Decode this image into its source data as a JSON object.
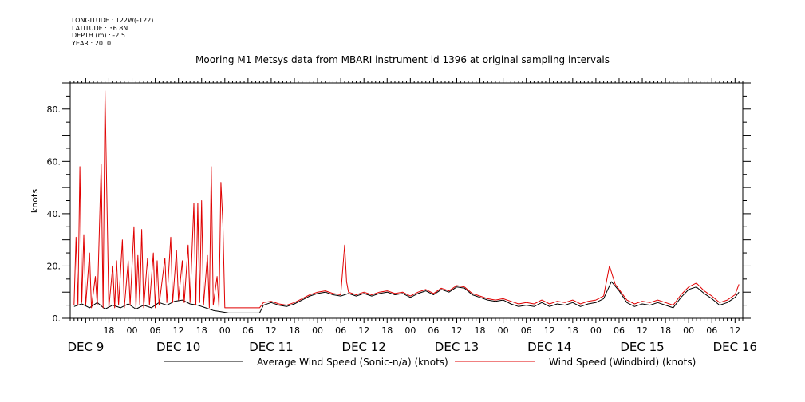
{
  "header": {
    "longitude": "LONGITUDE : 122W(-122)",
    "latitude": "LATITUDE : 36.8N",
    "depth": "DEPTH (m) : -2.5",
    "year": "YEAR : 2010"
  },
  "chart_data": {
    "type": "line",
    "title": "Mooring M1 Metsys data from MBARI instrument id 1396 at original sampling intervals",
    "ylabel": "knots",
    "xlabel": "",
    "xlim": [
      "2010-12-09T08:00",
      "2010-12-16T14:00"
    ],
    "ylim": [
      0,
      90
    ],
    "y_ticks": [
      0,
      20,
      40,
      60,
      80
    ],
    "y_tick_labels": [
      "0.",
      "20.",
      "40.",
      "60.",
      "80."
    ],
    "x_hour_labels": [
      {
        "t": "2010-12-09T18:00",
        "label": "18"
      },
      {
        "t": "2010-12-10T00:00",
        "label": "00"
      },
      {
        "t": "2010-12-10T06:00",
        "label": "06"
      },
      {
        "t": "2010-12-10T12:00",
        "label": "12"
      },
      {
        "t": "2010-12-10T18:00",
        "label": "18"
      },
      {
        "t": "2010-12-11T00:00",
        "label": "00"
      },
      {
        "t": "2010-12-11T06:00",
        "label": "06"
      },
      {
        "t": "2010-12-11T12:00",
        "label": "12"
      },
      {
        "t": "2010-12-11T18:00",
        "label": "18"
      },
      {
        "t": "2010-12-12T00:00",
        "label": "00"
      },
      {
        "t": "2010-12-12T06:00",
        "label": "06"
      },
      {
        "t": "2010-12-12T12:00",
        "label": "12"
      },
      {
        "t": "2010-12-12T18:00",
        "label": "18"
      },
      {
        "t": "2010-12-13T00:00",
        "label": "00"
      },
      {
        "t": "2010-12-13T06:00",
        "label": "06"
      },
      {
        "t": "2010-12-13T12:00",
        "label": "12"
      },
      {
        "t": "2010-12-13T18:00",
        "label": "18"
      },
      {
        "t": "2010-12-14T00:00",
        "label": "00"
      },
      {
        "t": "2010-12-14T06:00",
        "label": "06"
      },
      {
        "t": "2010-12-14T12:00",
        "label": "12"
      },
      {
        "t": "2010-12-14T18:00",
        "label": "18"
      },
      {
        "t": "2010-12-15T00:00",
        "label": "00"
      },
      {
        "t": "2010-12-15T06:00",
        "label": "06"
      },
      {
        "t": "2010-12-15T12:00",
        "label": "12"
      },
      {
        "t": "2010-12-15T18:00",
        "label": "18"
      },
      {
        "t": "2010-12-16T00:00",
        "label": "00"
      },
      {
        "t": "2010-12-16T06:00",
        "label": "06"
      },
      {
        "t": "2010-12-16T12:00",
        "label": "12"
      }
    ],
    "x_day_labels": [
      {
        "t": "2010-12-09T12:00",
        "label": "DEC  9"
      },
      {
        "t": "2010-12-10T12:00",
        "label": "DEC 10"
      },
      {
        "t": "2010-12-11T12:00",
        "label": "DEC 11"
      },
      {
        "t": "2010-12-12T12:00",
        "label": "DEC 12"
      },
      {
        "t": "2010-12-13T12:00",
        "label": "DEC 13"
      },
      {
        "t": "2010-12-14T12:00",
        "label": "DEC 14"
      },
      {
        "t": "2010-12-15T12:00",
        "label": "DEC 15"
      },
      {
        "t": "2010-12-16T12:00",
        "label": "DEC 16"
      }
    ],
    "legend_position": "bottom",
    "series": [
      {
        "name": "Average Wind Speed (Sonic-n/a) (knots)",
        "color": "#000000",
        "points": [
          [
            "2010-12-09T09:00",
            4.5
          ],
          [
            "2010-12-09T11:00",
            5.5
          ],
          [
            "2010-12-09T13:00",
            4.0
          ],
          [
            "2010-12-09T15:00",
            6.0
          ],
          [
            "2010-12-09T17:00",
            3.5
          ],
          [
            "2010-12-09T19:00",
            5.0
          ],
          [
            "2010-12-09T21:00",
            4.0
          ],
          [
            "2010-12-09T23:00",
            5.5
          ],
          [
            "2010-12-10T01:00",
            3.5
          ],
          [
            "2010-12-10T03:00",
            5.0
          ],
          [
            "2010-12-10T05:00",
            4.0
          ],
          [
            "2010-12-10T07:00",
            6.0
          ],
          [
            "2010-12-10T09:00",
            5.0
          ],
          [
            "2010-12-10T11:00",
            6.5
          ],
          [
            "2010-12-10T13:00",
            7.0
          ],
          [
            "2010-12-10T15:00",
            5.5
          ],
          [
            "2010-12-10T17:00",
            5.0
          ],
          [
            "2010-12-10T19:00",
            4.0
          ],
          [
            "2010-12-10T21:00",
            3.0
          ],
          [
            "2010-12-10T23:00",
            2.5
          ],
          [
            "2010-12-11T01:00",
            2.0
          ],
          [
            "2010-12-11T09:00",
            2.0
          ],
          [
            "2010-12-11T10:00",
            5.0
          ],
          [
            "2010-12-11T12:00",
            6.0
          ],
          [
            "2010-12-11T14:00",
            5.0
          ],
          [
            "2010-12-11T16:00",
            4.5
          ],
          [
            "2010-12-11T18:00",
            5.5
          ],
          [
            "2010-12-11T20:00",
            7.0
          ],
          [
            "2010-12-11T22:00",
            8.5
          ],
          [
            "2010-12-12T00:00",
            9.5
          ],
          [
            "2010-12-12T02:00",
            10.0
          ],
          [
            "2010-12-12T04:00",
            9.0
          ],
          [
            "2010-12-12T06:00",
            8.5
          ],
          [
            "2010-12-12T08:00",
            9.5
          ],
          [
            "2010-12-12T10:00",
            8.5
          ],
          [
            "2010-12-12T12:00",
            9.5
          ],
          [
            "2010-12-12T14:00",
            8.5
          ],
          [
            "2010-12-12T16:00",
            9.5
          ],
          [
            "2010-12-12T18:00",
            10.0
          ],
          [
            "2010-12-12T20:00",
            9.0
          ],
          [
            "2010-12-12T22:00",
            9.5
          ],
          [
            "2010-12-13T00:00",
            8.0
          ],
          [
            "2010-12-13T02:00",
            9.5
          ],
          [
            "2010-12-13T04:00",
            10.5
          ],
          [
            "2010-12-13T06:00",
            9.0
          ],
          [
            "2010-12-13T08:00",
            11.0
          ],
          [
            "2010-12-13T10:00",
            10.0
          ],
          [
            "2010-12-13T12:00",
            12.0
          ],
          [
            "2010-12-13T14:00",
            11.5
          ],
          [
            "2010-12-13T16:00",
            9.0
          ],
          [
            "2010-12-13T18:00",
            8.0
          ],
          [
            "2010-12-13T20:00",
            7.0
          ],
          [
            "2010-12-13T22:00",
            6.5
          ],
          [
            "2010-12-14T00:00",
            7.0
          ],
          [
            "2010-12-14T02:00",
            5.5
          ],
          [
            "2010-12-14T04:00",
            4.5
          ],
          [
            "2010-12-14T06:00",
            5.0
          ],
          [
            "2010-12-14T08:00",
            4.5
          ],
          [
            "2010-12-14T10:00",
            6.0
          ],
          [
            "2010-12-14T12:00",
            4.5
          ],
          [
            "2010-12-14T14:00",
            5.5
          ],
          [
            "2010-12-14T16:00",
            5.0
          ],
          [
            "2010-12-14T18:00",
            6.0
          ],
          [
            "2010-12-14T20:00",
            4.5
          ],
          [
            "2010-12-14T22:00",
            5.5
          ],
          [
            "2010-12-15T00:00",
            6.0
          ],
          [
            "2010-12-15T02:00",
            7.5
          ],
          [
            "2010-12-15T04:00",
            14.0
          ],
          [
            "2010-12-15T06:00",
            10.5
          ],
          [
            "2010-12-15T08:00",
            6.0
          ],
          [
            "2010-12-15T10:00",
            4.5
          ],
          [
            "2010-12-15T12:00",
            5.5
          ],
          [
            "2010-12-15T14:00",
            5.0
          ],
          [
            "2010-12-15T16:00",
            6.0
          ],
          [
            "2010-12-15T18:00",
            5.0
          ],
          [
            "2010-12-15T20:00",
            4.0
          ],
          [
            "2010-12-15T22:00",
            8.0
          ],
          [
            "2010-12-16T00:00",
            11.0
          ],
          [
            "2010-12-16T02:00",
            12.0
          ],
          [
            "2010-12-16T04:00",
            9.5
          ],
          [
            "2010-12-16T06:00",
            7.5
          ],
          [
            "2010-12-16T08:00",
            5.0
          ],
          [
            "2010-12-16T10:00",
            6.0
          ],
          [
            "2010-12-16T12:00",
            8.0
          ],
          [
            "2010-12-16T13:00",
            10.0
          ]
        ]
      },
      {
        "name": "Wind Speed (Windbird) (knots)",
        "color": "#e00000",
        "points": [
          [
            "2010-12-09T09:00",
            5
          ],
          [
            "2010-12-09T09:30",
            31
          ],
          [
            "2010-12-09T10:00",
            5
          ],
          [
            "2010-12-09T10:30",
            58
          ],
          [
            "2010-12-09T11:00",
            6
          ],
          [
            "2010-12-09T11:30",
            32
          ],
          [
            "2010-12-09T12:00",
            5
          ],
          [
            "2010-12-09T13:00",
            25
          ],
          [
            "2010-12-09T13:30",
            4
          ],
          [
            "2010-12-09T14:30",
            16
          ],
          [
            "2010-12-09T15:00",
            5
          ],
          [
            "2010-12-09T16:00",
            59
          ],
          [
            "2010-12-09T16:30",
            4
          ],
          [
            "2010-12-09T17:00",
            87
          ],
          [
            "2010-12-09T17:30",
            45
          ],
          [
            "2010-12-09T18:00",
            4
          ],
          [
            "2010-12-09T19:00",
            20
          ],
          [
            "2010-12-09T19:30",
            4
          ],
          [
            "2010-12-09T20:00",
            22
          ],
          [
            "2010-12-09T20:30",
            5
          ],
          [
            "2010-12-09T21:30",
            30
          ],
          [
            "2010-12-09T22:00",
            4
          ],
          [
            "2010-12-09T23:00",
            22
          ],
          [
            "2010-12-09T23:30",
            5
          ],
          [
            "2010-12-10T00:30",
            35
          ],
          [
            "2010-12-10T01:00",
            4
          ],
          [
            "2010-12-10T01:30",
            24
          ],
          [
            "2010-12-10T02:00",
            5
          ],
          [
            "2010-12-10T02:30",
            34
          ],
          [
            "2010-12-10T03:00",
            4
          ],
          [
            "2010-12-10T04:00",
            23
          ],
          [
            "2010-12-10T04:30",
            5
          ],
          [
            "2010-12-10T05:30",
            25
          ],
          [
            "2010-12-10T06:00",
            4
          ],
          [
            "2010-12-10T06:30",
            22
          ],
          [
            "2010-12-10T07:00",
            5
          ],
          [
            "2010-12-10T08:30",
            23
          ],
          [
            "2010-12-10T09:00",
            6
          ],
          [
            "2010-12-10T10:00",
            31
          ],
          [
            "2010-12-10T10:30",
            6
          ],
          [
            "2010-12-10T11:30",
            26
          ],
          [
            "2010-12-10T12:00",
            7
          ],
          [
            "2010-12-10T13:00",
            22
          ],
          [
            "2010-12-10T13:30",
            6
          ],
          [
            "2010-12-10T14:30",
            28
          ],
          [
            "2010-12-10T15:00",
            6
          ],
          [
            "2010-12-10T16:00",
            44
          ],
          [
            "2010-12-10T16:30",
            5
          ],
          [
            "2010-12-10T17:00",
            44
          ],
          [
            "2010-12-10T17:30",
            6
          ],
          [
            "2010-12-10T18:00",
            45
          ],
          [
            "2010-12-10T18:30",
            5
          ],
          [
            "2010-12-10T19:30",
            24
          ],
          [
            "2010-12-10T20:00",
            4
          ],
          [
            "2010-12-10T20:30",
            58
          ],
          [
            "2010-12-10T21:00",
            5
          ],
          [
            "2010-12-10T22:00",
            16
          ],
          [
            "2010-12-10T22:30",
            4
          ],
          [
            "2010-12-10T23:00",
            52
          ],
          [
            "2010-12-10T23:30",
            36
          ],
          [
            "2010-12-11T00:00",
            4
          ],
          [
            "2010-12-11T09:00",
            4
          ],
          [
            "2010-12-11T10:00",
            6
          ],
          [
            "2010-12-11T12:00",
            6.5
          ],
          [
            "2010-12-11T14:00",
            5.5
          ],
          [
            "2010-12-11T16:00",
            5
          ],
          [
            "2010-12-11T18:00",
            6
          ],
          [
            "2010-12-11T20:00",
            7.5
          ],
          [
            "2010-12-11T22:00",
            9
          ],
          [
            "2010-12-12T00:00",
            10
          ],
          [
            "2010-12-12T02:00",
            10.5
          ],
          [
            "2010-12-12T04:00",
            9.5
          ],
          [
            "2010-12-12T06:00",
            9
          ],
          [
            "2010-12-12T07:00",
            28
          ],
          [
            "2010-12-12T07:30",
            14
          ],
          [
            "2010-12-12T08:00",
            10
          ],
          [
            "2010-12-12T10:00",
            9
          ],
          [
            "2010-12-12T12:00",
            10
          ],
          [
            "2010-12-12T14:00",
            9
          ],
          [
            "2010-12-12T16:00",
            10
          ],
          [
            "2010-12-12T18:00",
            10.5
          ],
          [
            "2010-12-12T20:00",
            9.5
          ],
          [
            "2010-12-12T22:00",
            10
          ],
          [
            "2010-12-13T00:00",
            8.5
          ],
          [
            "2010-12-13T02:00",
            10
          ],
          [
            "2010-12-13T04:00",
            11
          ],
          [
            "2010-12-13T06:00",
            9.5
          ],
          [
            "2010-12-13T08:00",
            11.5
          ],
          [
            "2010-12-13T10:00",
            10.5
          ],
          [
            "2010-12-13T12:00",
            12.5
          ],
          [
            "2010-12-13T14:00",
            12
          ],
          [
            "2010-12-13T16:00",
            9.5
          ],
          [
            "2010-12-13T18:00",
            8.5
          ],
          [
            "2010-12-13T20:00",
            7.5
          ],
          [
            "2010-12-13T22:00",
            7
          ],
          [
            "2010-12-14T00:00",
            7.5
          ],
          [
            "2010-12-14T02:00",
            6.5
          ],
          [
            "2010-12-14T04:00",
            5.5
          ],
          [
            "2010-12-14T06:00",
            6
          ],
          [
            "2010-12-14T08:00",
            5.5
          ],
          [
            "2010-12-14T10:00",
            7
          ],
          [
            "2010-12-14T12:00",
            5.5
          ],
          [
            "2010-12-14T14:00",
            6.5
          ],
          [
            "2010-12-14T16:00",
            6
          ],
          [
            "2010-12-14T18:00",
            7
          ],
          [
            "2010-12-14T20:00",
            5.5
          ],
          [
            "2010-12-14T22:00",
            6.5
          ],
          [
            "2010-12-15T00:00",
            7
          ],
          [
            "2010-12-15T02:00",
            8.5
          ],
          [
            "2010-12-15T03:30",
            20
          ],
          [
            "2010-12-15T05:00",
            13
          ],
          [
            "2010-12-15T06:00",
            11
          ],
          [
            "2010-12-15T08:00",
            7
          ],
          [
            "2010-12-15T10:00",
            5.5
          ],
          [
            "2010-12-15T12:00",
            6.5
          ],
          [
            "2010-12-15T14:00",
            6
          ],
          [
            "2010-12-15T16:00",
            7
          ],
          [
            "2010-12-15T18:00",
            6
          ],
          [
            "2010-12-15T20:00",
            5
          ],
          [
            "2010-12-15T22:00",
            9
          ],
          [
            "2010-12-16T00:00",
            12
          ],
          [
            "2010-12-16T02:00",
            13.5
          ],
          [
            "2010-12-16T04:00",
            10.5
          ],
          [
            "2010-12-16T06:00",
            8.5
          ],
          [
            "2010-12-16T08:00",
            6
          ],
          [
            "2010-12-16T10:00",
            7
          ],
          [
            "2010-12-16T12:00",
            9
          ],
          [
            "2010-12-16T13:00",
            13
          ]
        ]
      }
    ]
  }
}
